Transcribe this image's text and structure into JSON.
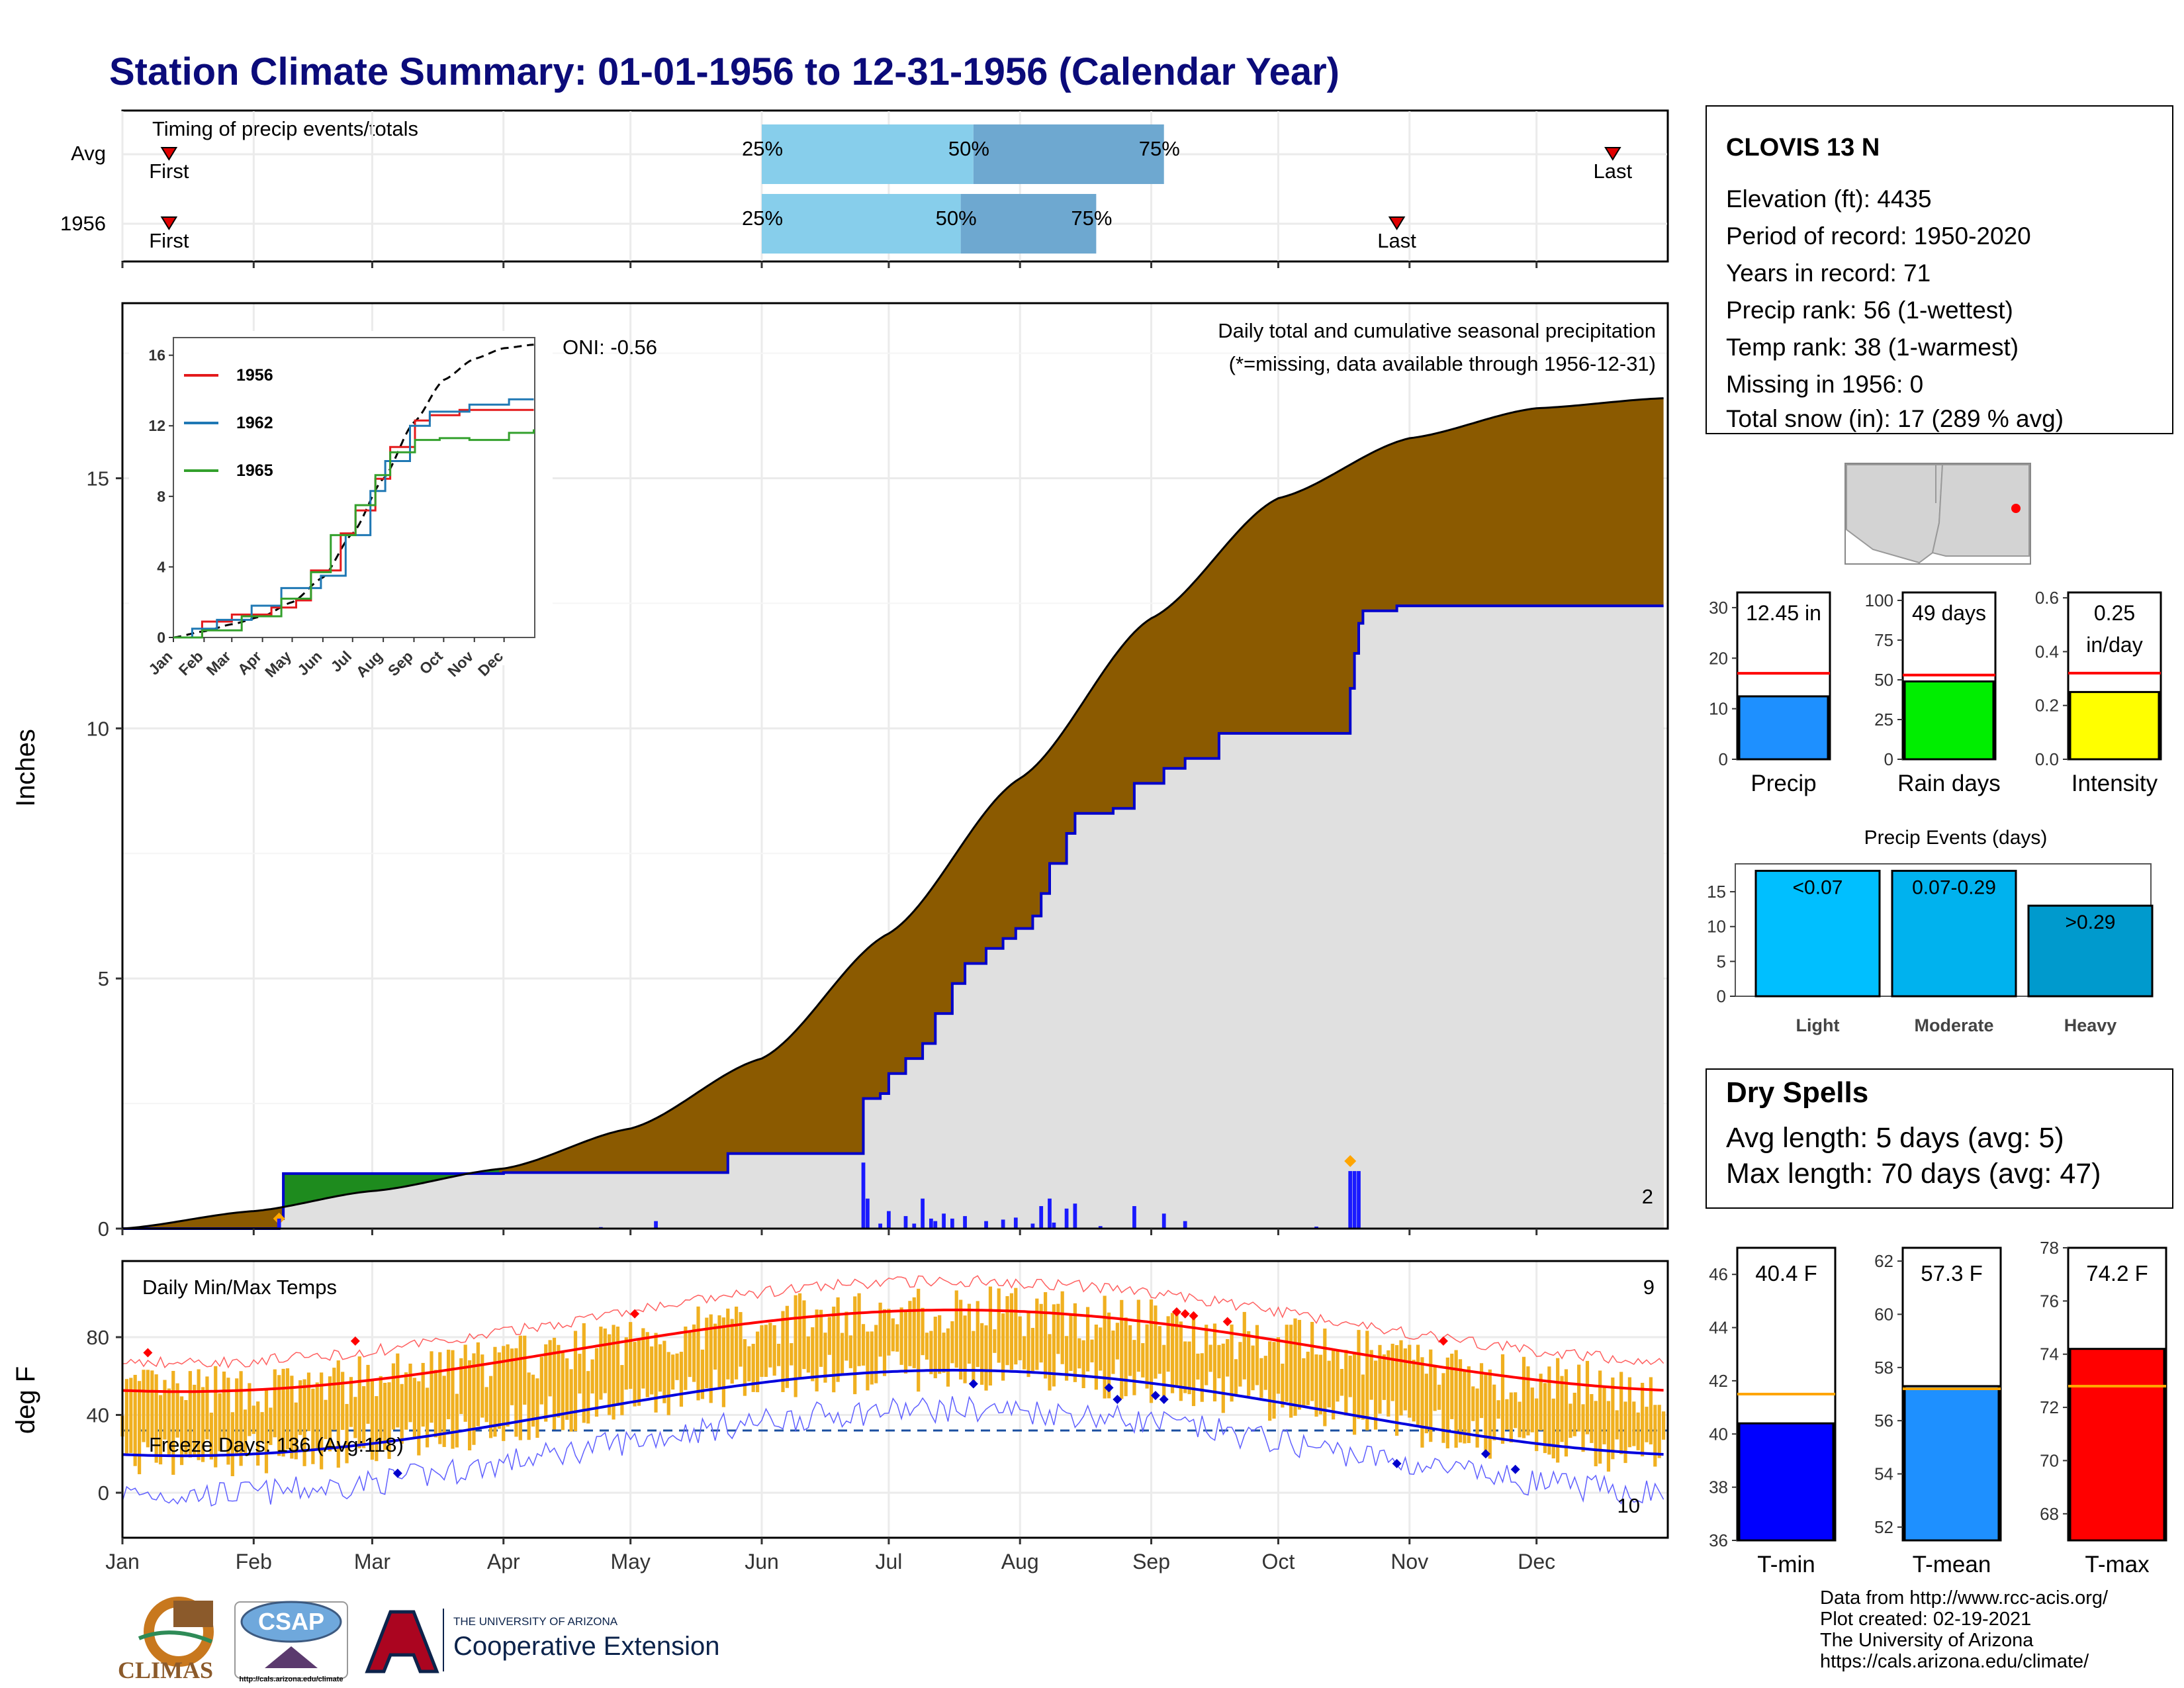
{
  "title": "Station Climate Summary: 01-01-1956 to 12-31-1956 (Calendar Year)",
  "colors": {
    "title": "#0b0b7a",
    "cumulative_fill": "#8b5a00",
    "normal_fill": "#e0e0e0",
    "deficit_fill": "#1e8b1e",
    "daily_bar": "#1a1aff",
    "temp_bar": "#f0b020",
    "tmax_line": "#ff0000",
    "tmin_line": "#0000dd",
    "light_blue": "#87ceeb",
    "mid_blue": "#6ea8d0",
    "dry_spell": "#a52a2a"
  },
  "timing": {
    "title": "Timing of precip events/totals",
    "rows": [
      {
        "label": "Avg",
        "first": "First",
        "last": "Last",
        "p25": "25%",
        "p50": "50%",
        "p75": "75%",
        "first_doy": 12,
        "p25_doy": 152,
        "p50_doy": 202,
        "p75_doy": 247,
        "last_doy": 353
      },
      {
        "label": "1956",
        "first": "First",
        "last": "Last",
        "p25": "25%",
        "p50": "50%",
        "p75": "75%",
        "first_doy": 12,
        "p25_doy": 152,
        "p50_doy": 199,
        "p75_doy": 231,
        "last_doy": 302
      }
    ]
  },
  "precip_panel": {
    "ylabel": "Inches",
    "yticks": [
      "0",
      "5",
      "10",
      "15"
    ],
    "ymax": 18.5,
    "caption": "Daily total and cumulative seasonal precipitation",
    "caption2": "(*=missing, data available through 1956-12-31)",
    "oni": "ONI: -0.56",
    "corner_value": "2"
  },
  "inset": {
    "yticks": [
      "0",
      "4",
      "8",
      "12",
      "16"
    ],
    "months": [
      "Jan",
      "Feb",
      "Mar",
      "Apr",
      "May",
      "Jun",
      "Jul",
      "Aug",
      "Sep",
      "Oct",
      "Nov",
      "Dec"
    ],
    "series": [
      {
        "name": "1956",
        "color": "#e31a1c"
      },
      {
        "name": "1962",
        "color": "#1f78b4"
      },
      {
        "name": "1965",
        "color": "#33a02c"
      }
    ]
  },
  "temp_panel": {
    "ylabel": "deg F",
    "yticks": [
      "0",
      "40",
      "80"
    ],
    "title": "Daily Min/Max Temps",
    "freeze_label": "Freeze Days: 136 (Avg:118)",
    "corner_max": "9",
    "corner_min": "10"
  },
  "months": [
    "Jan",
    "Feb",
    "Mar",
    "Apr",
    "May",
    "Jun",
    "Jul",
    "Aug",
    "Sep",
    "Oct",
    "Nov",
    "Dec"
  ],
  "station": {
    "name": "CLOVIS 13 N",
    "lines": [
      "Elevation (ft): 4435",
      "Period of record: 1950-2020",
      "Years in record: 71",
      "Precip rank: 56 (1-wettest)",
      "Temp rank: 38 (1-warmest)",
      "Missing in 1956: 0",
      "Total snow (in): 17 (289 % avg)"
    ]
  },
  "mini_bars": [
    {
      "label": "Precip",
      "value_text": "12.45 in",
      "value": 12.45,
      "avg": 17.0,
      "ymax": 33,
      "ticks": [
        "0",
        "10",
        "20",
        "30"
      ],
      "tickvals": [
        0,
        10,
        20,
        30
      ],
      "color": "#1e90ff"
    },
    {
      "label": "Rain days",
      "value_text": "49 days",
      "value": 49,
      "avg": 53,
      "ymax": 105,
      "ticks": [
        "0",
        "25",
        "50",
        "75",
        "100"
      ],
      "tickvals": [
        0,
        25,
        50,
        75,
        100
      ],
      "color": "#00ee00"
    },
    {
      "label": "Intensity",
      "value_text": "0.25",
      "value_text2": "in/day",
      "value": 0.25,
      "avg": 0.32,
      "ymax": 0.62,
      "ticks": [
        "0.0",
        "0.2",
        "0.4",
        "0.6"
      ],
      "tickvals": [
        0,
        0.2,
        0.4,
        0.6
      ],
      "color": "#ffff00"
    }
  ],
  "precip_events": {
    "title": "Precip Events (days)",
    "yticks": [
      "0",
      "5",
      "10",
      "15"
    ],
    "bars": [
      {
        "label": "Light",
        "value_text": "<0.07",
        "value": 18,
        "color": "#00bfff"
      },
      {
        "label": "Moderate",
        "value_text": "0.07-0.29",
        "value": 18,
        "color": "#00b2ee"
      },
      {
        "label": "Heavy",
        "value_text": ">0.29",
        "value": 13,
        "color": "#009acd"
      }
    ]
  },
  "dry_spells": {
    "title": "Dry Spells",
    "avg_line": "Avg length: 5 days (avg: 5)",
    "max_line": "Max length: 70 days (avg: 47)"
  },
  "temp_bars": [
    {
      "label": "T-min",
      "value_text": "40.4 F",
      "value": 40.4,
      "avg": 41.5,
      "ymin": 36,
      "ymax": 47,
      "ticks": [
        "36",
        "38",
        "40",
        "42",
        "44",
        "46"
      ],
      "tickvals": [
        36,
        38,
        40,
        42,
        44,
        46
      ],
      "color": "#0000ff"
    },
    {
      "label": "T-mean",
      "value_text": "57.3 F",
      "value": 57.3,
      "avg": 57.2,
      "ymin": 51.5,
      "ymax": 62.5,
      "ticks": [
        "52",
        "54",
        "56",
        "58",
        "60",
        "62"
      ],
      "tickvals": [
        52,
        54,
        56,
        58,
        60,
        62
      ],
      "color": "#1e90ff"
    },
    {
      "label": "T-max",
      "value_text": "74.2 F",
      "value": 74.2,
      "avg": 72.8,
      "ymin": 67,
      "ymax": 78,
      "ticks": [
        "68",
        "70",
        "72",
        "74",
        "76",
        "78"
      ],
      "tickvals": [
        68,
        70,
        72,
        74,
        76,
        78
      ],
      "color": "#ff0000"
    }
  ],
  "footer": {
    "credits": [
      "Data from http://www.rcc-acis.org/",
      "Plot created: 02-19-2021",
      "The University of Arizona",
      "https://cals.arizona.edu/climate/"
    ],
    "climas": "CLIMAS",
    "csap": "CSAP",
    "csap_url": "http://cals.arizona.edu/climate",
    "ua_small": "THE UNIVERSITY OF ARIZONA",
    "ua_big": "Cooperative Extension"
  }
}
